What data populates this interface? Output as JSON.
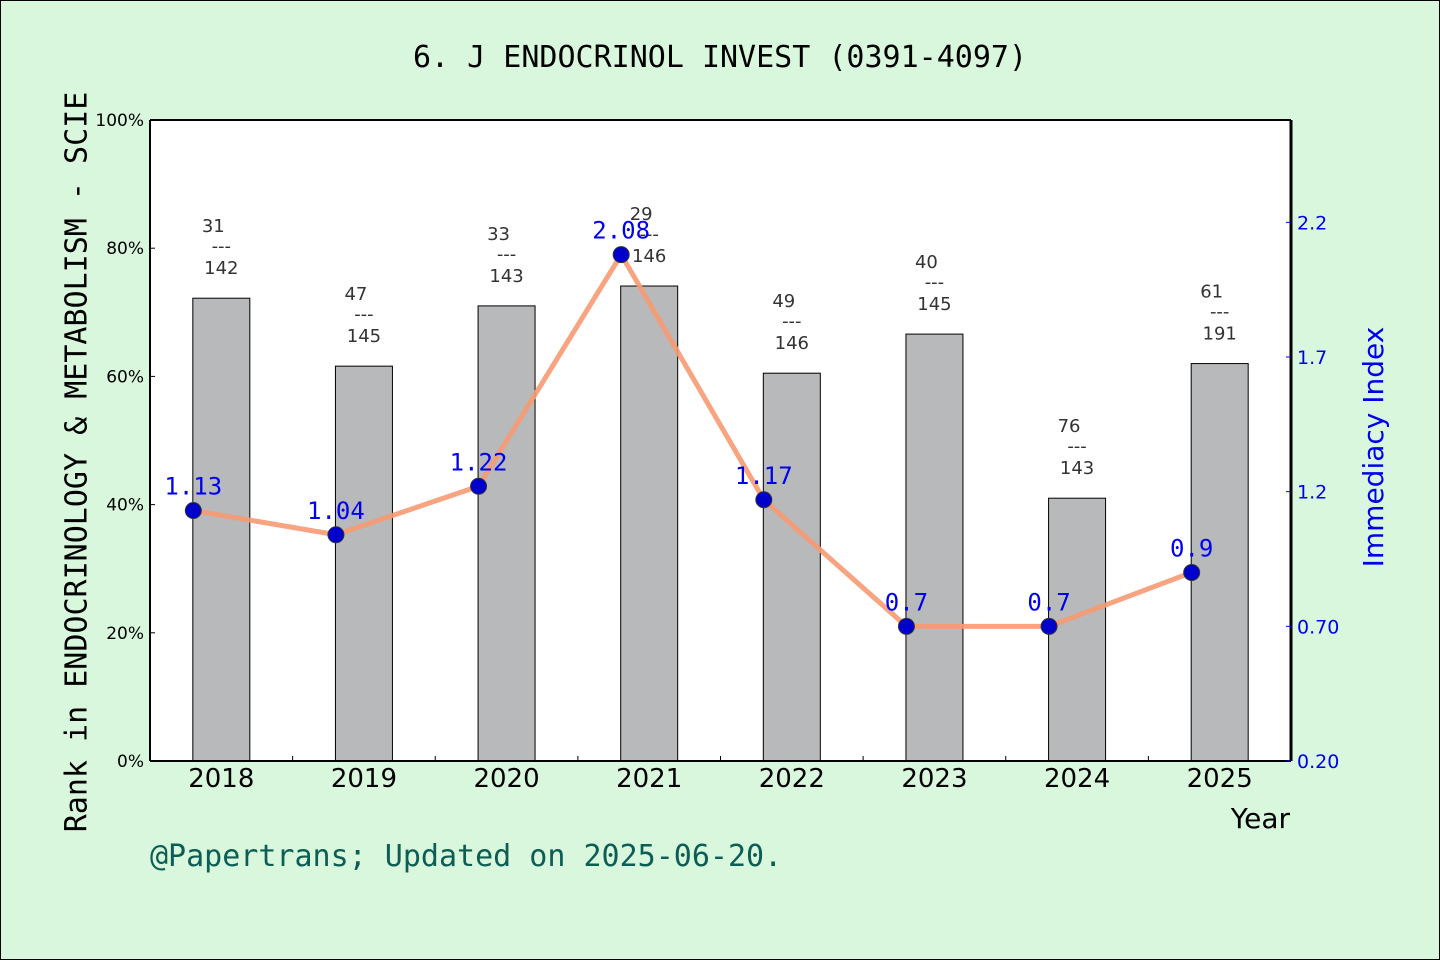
{
  "chart_data": {
    "type": "bar",
    "title": "6. J ENDOCRINOL INVEST (0391-4097)",
    "xlabel": "Year",
    "ylabel": "Rank in ENDOCRINOLOGY & METABOLISM - SCIE",
    "y2label": "Immediacy Index",
    "footer": "@Papertrans; Updated on 2025-06-20.",
    "categories": [
      "2018",
      "2019",
      "2020",
      "2021",
      "2022",
      "2023",
      "2024",
      "2025"
    ],
    "ylim": [
      0,
      100
    ],
    "yticks": [
      "0%",
      "20%",
      "40%",
      "60%",
      "80%",
      "100%"
    ],
    "y2lim": [
      0.2,
      2.58
    ],
    "y2ticks": [
      "0.20",
      "0.70",
      "1.2",
      "1.7",
      "2.2"
    ],
    "series": [
      {
        "type": "bar",
        "values": [
          72.2,
          61.6,
          71.0,
          74.1,
          60.5,
          66.6,
          41.0,
          62.0
        ],
        "rank_top": [
          "31",
          "47",
          "33",
          "29",
          "49",
          "40",
          "76",
          "61"
        ],
        "rank_bottom": [
          "142",
          "145",
          "143",
          "146",
          "146",
          "145",
          "143",
          "191"
        ],
        "color": "#b8b9ba"
      },
      {
        "type": "line",
        "axis": "right",
        "values": [
          1.13,
          1.04,
          1.22,
          2.08,
          1.17,
          0.7,
          0.7,
          0.9
        ],
        "labels": [
          "1.13",
          "1.04",
          "1.22",
          "2.08",
          "1.17",
          "0.7",
          "0.7",
          "0.9"
        ],
        "color": "#f79a72",
        "marker_color": "#0000cc"
      }
    ],
    "grid": false,
    "colors": {
      "background": "#d9f7dc",
      "plot": "#ffffff",
      "right_axis": "#0000ee",
      "footer": "#0b5d55"
    }
  }
}
